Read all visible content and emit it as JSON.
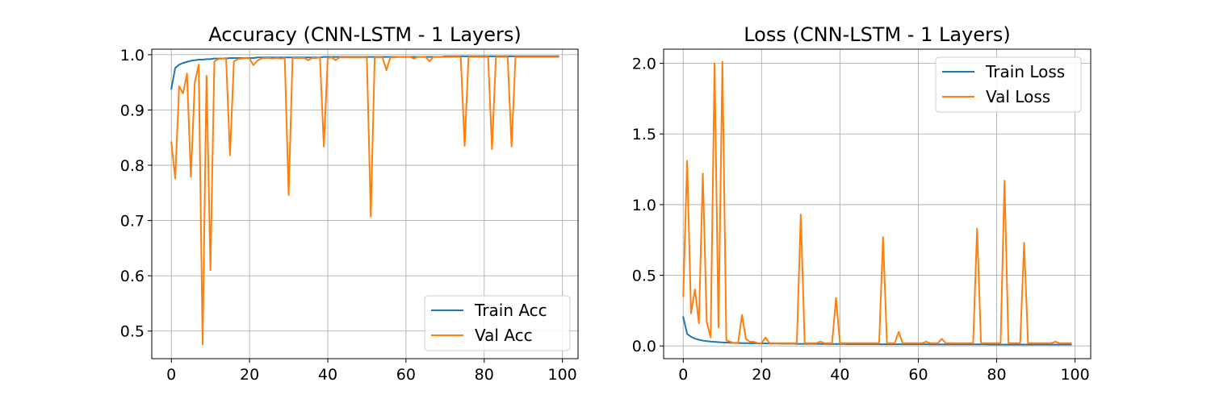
{
  "chart_data": [
    {
      "type": "line",
      "title": "Accuracy (CNN-LSTM - 1 Layers)",
      "xlim": [
        -5,
        104
      ],
      "ylim": [
        0.45,
        1.01
      ],
      "xticks": [
        0,
        20,
        40,
        60,
        80,
        100
      ],
      "yticks": [
        0.5,
        0.6,
        0.7,
        0.8,
        0.9,
        1.0
      ],
      "xtick_labels": [
        "0",
        "20",
        "40",
        "60",
        "80",
        "100"
      ],
      "ytick_labels": [
        "0.5",
        "0.6",
        "0.7",
        "0.8",
        "0.9",
        "1.0"
      ],
      "grid": true,
      "legend_position": "lower-right",
      "series": [
        {
          "name": "Train Acc",
          "color": "#1f77b4",
          "values": [
            0.938,
            0.976,
            0.982,
            0.985,
            0.987,
            0.989,
            0.99,
            0.991,
            0.991,
            0.992,
            0.992,
            0.993,
            0.993,
            0.993,
            0.993,
            0.994,
            0.994,
            0.994,
            0.994,
            0.994,
            0.994,
            0.994,
            0.995,
            0.995,
            0.995,
            0.995,
            0.995,
            0.995,
            0.995,
            0.995,
            0.995,
            0.995,
            0.995,
            0.995,
            0.995,
            0.995,
            0.995,
            0.995,
            0.995,
            0.996,
            0.996,
            0.996,
            0.996,
            0.996,
            0.996,
            0.996,
            0.996,
            0.996,
            0.996,
            0.996,
            0.996,
            0.996,
            0.996,
            0.996,
            0.996,
            0.996,
            0.996,
            0.996,
            0.996,
            0.996,
            0.996,
            0.996,
            0.996,
            0.996,
            0.996,
            0.996,
            0.996,
            0.996,
            0.996,
            0.996,
            0.997,
            0.997,
            0.997,
            0.997,
            0.997,
            0.997,
            0.997,
            0.997,
            0.997,
            0.997,
            0.997,
            0.997,
            0.997,
            0.997,
            0.997,
            0.997,
            0.997,
            0.997,
            0.997,
            0.997,
            0.997,
            0.997,
            0.997,
            0.997,
            0.997,
            0.997,
            0.997,
            0.997,
            0.997,
            0.997
          ]
        },
        {
          "name": "Val Acc",
          "color": "#ff7f0e",
          "values": [
            0.842,
            0.776,
            0.943,
            0.93,
            0.966,
            0.779,
            0.95,
            0.982,
            0.476,
            0.962,
            0.61,
            0.988,
            0.992,
            0.993,
            0.994,
            0.818,
            0.988,
            0.992,
            0.993,
            0.994,
            0.993,
            0.981,
            0.989,
            0.993,
            0.994,
            0.994,
            0.993,
            0.994,
            0.993,
            0.994,
            0.746,
            0.994,
            0.994,
            0.994,
            0.994,
            0.99,
            0.994,
            0.994,
            0.995,
            0.834,
            0.994,
            0.995,
            0.99,
            0.995,
            0.995,
            0.995,
            0.995,
            0.995,
            0.995,
            0.995,
            0.995,
            0.707,
            0.995,
            0.995,
            0.995,
            0.972,
            0.995,
            0.995,
            0.996,
            0.996,
            0.996,
            0.996,
            0.993,
            0.996,
            0.996,
            0.996,
            0.988,
            0.996,
            0.996,
            0.996,
            0.996,
            0.996,
            0.996,
            0.996,
            0.996,
            0.835,
            0.996,
            0.996,
            0.996,
            0.996,
            0.996,
            0.996,
            0.829,
            0.996,
            0.996,
            0.996,
            0.996,
            0.834,
            0.996,
            0.996,
            0.996,
            0.996,
            0.996,
            0.996,
            0.996,
            0.996,
            0.996,
            0.996,
            0.996,
            0.996
          ]
        }
      ]
    },
    {
      "type": "line",
      "title": "Loss (CNN-LSTM - 1 Layers)",
      "xlim": [
        -5,
        104
      ],
      "ylim": [
        -0.09,
        2.1
      ],
      "xticks": [
        0,
        20,
        40,
        60,
        80,
        100
      ],
      "yticks": [
        0.0,
        0.5,
        1.0,
        1.5,
        2.0
      ],
      "xtick_labels": [
        "0",
        "20",
        "40",
        "60",
        "80",
        "100"
      ],
      "ytick_labels": [
        "0.0",
        "0.5",
        "1.0",
        "1.5",
        "2.0"
      ],
      "grid": true,
      "legend_position": "upper-right",
      "series": [
        {
          "name": "Train Loss",
          "color": "#1f77b4",
          "values": [
            0.205,
            0.085,
            0.065,
            0.052,
            0.044,
            0.038,
            0.034,
            0.031,
            0.029,
            0.027,
            0.025,
            0.024,
            0.023,
            0.022,
            0.021,
            0.02,
            0.02,
            0.019,
            0.019,
            0.018,
            0.018,
            0.018,
            0.017,
            0.017,
            0.017,
            0.016,
            0.016,
            0.016,
            0.016,
            0.015,
            0.015,
            0.015,
            0.015,
            0.015,
            0.015,
            0.014,
            0.014,
            0.014,
            0.014,
            0.014,
            0.014,
            0.014,
            0.013,
            0.013,
            0.013,
            0.013,
            0.013,
            0.013,
            0.013,
            0.013,
            0.013,
            0.012,
            0.012,
            0.012,
            0.012,
            0.012,
            0.012,
            0.012,
            0.012,
            0.012,
            0.012,
            0.012,
            0.012,
            0.011,
            0.011,
            0.011,
            0.011,
            0.011,
            0.011,
            0.011,
            0.011,
            0.011,
            0.011,
            0.011,
            0.011,
            0.011,
            0.011,
            0.011,
            0.01,
            0.01,
            0.01,
            0.01,
            0.01,
            0.01,
            0.01,
            0.01,
            0.01,
            0.01,
            0.01,
            0.01,
            0.01,
            0.01,
            0.01,
            0.01,
            0.01,
            0.01,
            0.01,
            0.01,
            0.01,
            0.01
          ]
        },
        {
          "name": "Val Loss",
          "color": "#ff7f0e",
          "values": [
            0.35,
            1.31,
            0.23,
            0.4,
            0.16,
            1.22,
            0.17,
            0.06,
            2.0,
            0.13,
            2.01,
            0.04,
            0.03,
            0.02,
            0.02,
            0.22,
            0.05,
            0.03,
            0.03,
            0.02,
            0.02,
            0.06,
            0.02,
            0.02,
            0.02,
            0.02,
            0.02,
            0.02,
            0.02,
            0.02,
            0.93,
            0.02,
            0.02,
            0.02,
            0.02,
            0.03,
            0.02,
            0.02,
            0.02,
            0.34,
            0.02,
            0.02,
            0.02,
            0.02,
            0.02,
            0.02,
            0.02,
            0.02,
            0.02,
            0.02,
            0.02,
            0.77,
            0.02,
            0.02,
            0.02,
            0.1,
            0.02,
            0.02,
            0.02,
            0.02,
            0.02,
            0.02,
            0.03,
            0.02,
            0.02,
            0.02,
            0.05,
            0.02,
            0.02,
            0.02,
            0.02,
            0.02,
            0.02,
            0.02,
            0.02,
            0.83,
            0.02,
            0.02,
            0.02,
            0.02,
            0.02,
            0.02,
            1.17,
            0.02,
            0.02,
            0.02,
            0.02,
            0.73,
            0.02,
            0.02,
            0.02,
            0.02,
            0.02,
            0.02,
            0.02,
            0.03,
            0.02,
            0.02,
            0.02,
            0.02
          ]
        }
      ]
    }
  ]
}
